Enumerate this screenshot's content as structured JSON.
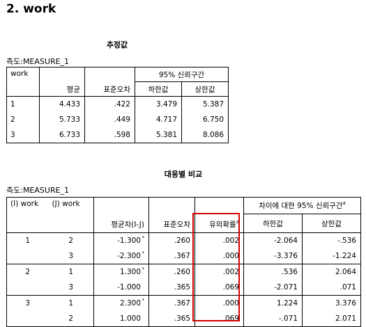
{
  "section_title": "2. work",
  "table1": {
    "title": "추정값",
    "measure": "측도:MEASURE_1",
    "h_work": "work",
    "h_mean": "평균",
    "h_se": "표준오차",
    "h_ci": "95% 신뢰구간",
    "h_lower": "하한값",
    "h_upper": "상한값",
    "rows": [
      [
        "1",
        "4.433",
        ".422",
        "3.479",
        "5.387"
      ],
      [
        "2",
        "5.733",
        ".449",
        "4.717",
        "6.750"
      ],
      [
        "3",
        "6.733",
        ".598",
        "5.381",
        "8.086"
      ]
    ]
  },
  "table2": {
    "title": "대응별 비교",
    "measure": "측도:MEASURE_1",
    "h_i": "(I) work",
    "h_j": "(J) work",
    "h_diff": "평균차(I-J)",
    "h_se": "표준오차",
    "h_sig": "유의확률",
    "h_sig_sup": "a",
    "h_ci": "차이에 대한 95% 신뢰구간",
    "h_ci_sup": "a",
    "h_lower": "하한값",
    "h_upper": "상한값",
    "rows": [
      [
        "1",
        "2",
        "-1.300",
        "*",
        ".260",
        ".002",
        "-2.064",
        "-.536"
      ],
      [
        "",
        "3",
        "-2.300",
        "*",
        ".367",
        ".000",
        "-3.376",
        "-1.224"
      ],
      [
        "2",
        "1",
        "1.300",
        "*",
        ".260",
        ".002",
        ".536",
        "2.064"
      ],
      [
        "",
        "3",
        "-1.000",
        "",
        ".365",
        ".069",
        "-2.071",
        ".071"
      ],
      [
        "3",
        "1",
        "2.300",
        "*",
        ".367",
        ".000",
        "1.224",
        "3.376"
      ],
      [
        "",
        "2",
        "1.000",
        "",
        ".365",
        ".069",
        "-.071",
        "2.071"
      ]
    ]
  },
  "highlight_color": "#d10000"
}
